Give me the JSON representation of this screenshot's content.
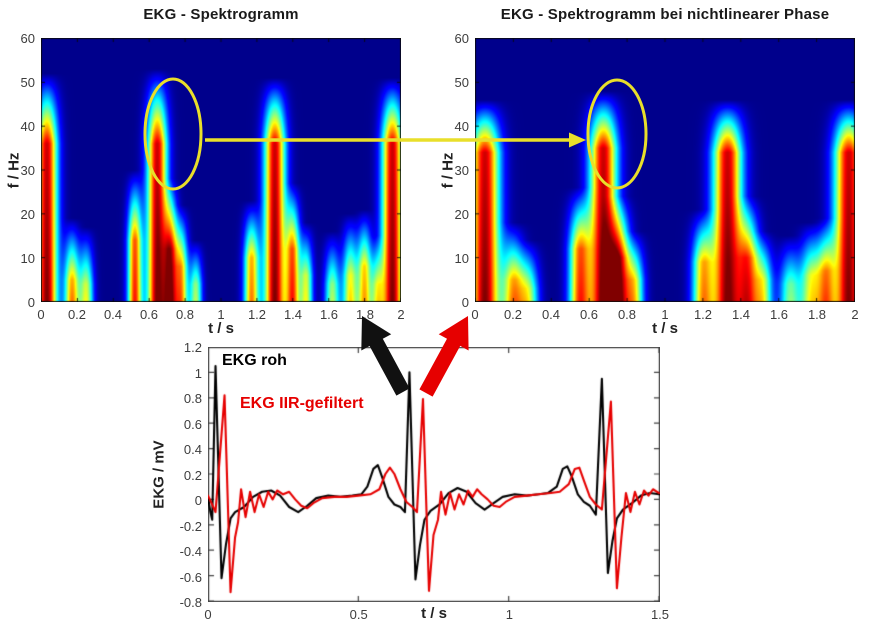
{
  "figure": {
    "background": "#ffffff",
    "annotation_colors": {
      "highlight_yellow": "#e9df2a",
      "raw_arrow_black": "#111111",
      "filtered_arrow_red": "#e60000"
    }
  },
  "chart_data": [
    {
      "id": "spectrogram_raw",
      "type": "heatmap",
      "title": "EKG - Spektrogramm",
      "xlabel": "t / s",
      "ylabel": "f / Hz",
      "xlim": [
        0,
        2
      ],
      "ylim": [
        0,
        60
      ],
      "xticks": [
        "0",
        "0.2",
        "0.4",
        "0.6",
        "0.8",
        "1",
        "1.2",
        "1.4",
        "1.6",
        "1.8",
        "2"
      ],
      "yticks": [
        "0",
        "10",
        "20",
        "30",
        "40",
        "50",
        "60"
      ],
      "colormap": "jet",
      "grid": false,
      "bursts_comment": "QRS energy bursts: [time_s, time_sigma_s, red_core_top_Hz, tip_top_Hz, amplitude]",
      "bursts": [
        [
          0.03,
          0.042,
          36,
          52,
          1.0
        ],
        [
          0.17,
          0.03,
          5,
          19,
          0.75
        ],
        [
          0.25,
          0.028,
          4,
          17,
          0.6
        ],
        [
          0.52,
          0.028,
          14,
          30,
          0.85
        ],
        [
          0.645,
          0.04,
          36,
          53,
          1.0
        ],
        [
          0.72,
          0.028,
          12,
          28,
          0.85
        ],
        [
          0.78,
          0.026,
          8,
          22,
          0.7
        ],
        [
          0.86,
          0.025,
          4,
          14,
          0.55
        ],
        [
          1.17,
          0.03,
          10,
          23,
          0.75
        ],
        [
          1.3,
          0.042,
          36,
          51,
          1.0
        ],
        [
          1.4,
          0.028,
          12,
          27,
          0.8
        ],
        [
          1.475,
          0.026,
          6,
          18,
          0.6
        ],
        [
          1.62,
          0.03,
          4,
          16,
          0.55
        ],
        [
          1.72,
          0.03,
          6,
          20,
          0.65
        ],
        [
          1.8,
          0.028,
          8,
          21,
          0.7
        ],
        [
          1.87,
          0.025,
          4,
          15,
          0.5
        ],
        [
          1.955,
          0.042,
          36,
          51,
          1.0
        ]
      ]
    },
    {
      "id": "spectrogram_nonlinear_phase",
      "type": "heatmap",
      "title": "EKG - Spektrogramm bei nichtlinearer Phase",
      "xlabel": "t / s",
      "ylabel": "f / Hz",
      "xlim": [
        0,
        2
      ],
      "ylim": [
        0,
        60
      ],
      "xticks": [
        "0",
        "0.2",
        "0.4",
        "0.6",
        "0.8",
        "1",
        "1.2",
        "1.4",
        "1.6",
        "1.8",
        "2"
      ],
      "yticks": [
        "0",
        "10",
        "20",
        "30",
        "40",
        "50",
        "60"
      ],
      "colormap": "jet",
      "grid": false,
      "bursts": [
        [
          0.05,
          0.055,
          34,
          46,
          1.0
        ],
        [
          0.2,
          0.04,
          5,
          18,
          0.7
        ],
        [
          0.28,
          0.038,
          3,
          14,
          0.55
        ],
        [
          0.55,
          0.04,
          12,
          26,
          0.8
        ],
        [
          0.675,
          0.052,
          35,
          48,
          1.0
        ],
        [
          0.76,
          0.04,
          10,
          24,
          0.8
        ],
        [
          0.84,
          0.035,
          5,
          16,
          0.6
        ],
        [
          1.2,
          0.04,
          9,
          21,
          0.7
        ],
        [
          1.33,
          0.055,
          34,
          46,
          1.0
        ],
        [
          1.44,
          0.04,
          10,
          24,
          0.75
        ],
        [
          1.52,
          0.035,
          5,
          16,
          0.55
        ],
        [
          1.66,
          0.04,
          4,
          15,
          0.5
        ],
        [
          1.77,
          0.04,
          6,
          18,
          0.6
        ],
        [
          1.85,
          0.035,
          7,
          19,
          0.65
        ],
        [
          1.97,
          0.055,
          34,
          46,
          1.0
        ]
      ]
    },
    {
      "id": "ekg_time_signals",
      "type": "line",
      "title": "",
      "xlabel": "t / s",
      "ylabel": "EKG / mV",
      "xlim": [
        0,
        1.5
      ],
      "ylim": [
        -0.8,
        1.2
      ],
      "xticks": [
        "0",
        "0.5",
        "1",
        "1.5"
      ],
      "yticks": [
        "-0.8",
        "-0.6",
        "-0.4",
        "-0.2",
        "0",
        "0.2",
        "0.4",
        "0.6",
        "0.8",
        "1",
        "1.2"
      ],
      "grid": false,
      "legend_position": "top-left-inside",
      "series": [
        {
          "name": "EKG roh",
          "color": "#000000",
          "points": [
            [
              0,
              0.02
            ],
            [
              0.008,
              -0.1
            ],
            [
              0.014,
              -0.16
            ],
            [
              0.025,
              1.05
            ],
            [
              0.045,
              -0.62
            ],
            [
              0.06,
              -0.35
            ],
            [
              0.075,
              -0.15
            ],
            [
              0.09,
              -0.1
            ],
            [
              0.12,
              -0.06
            ],
            [
              0.15,
              0.02
            ],
            [
              0.18,
              0.06
            ],
            [
              0.21,
              0.07
            ],
            [
              0.24,
              0.03
            ],
            [
              0.27,
              -0.06
            ],
            [
              0.3,
              -0.1
            ],
            [
              0.33,
              -0.05
            ],
            [
              0.36,
              0.01
            ],
            [
              0.4,
              0.03
            ],
            [
              0.44,
              0.02
            ],
            [
              0.48,
              0.03
            ],
            [
              0.51,
              0.04
            ],
            [
              0.53,
              0.1
            ],
            [
              0.55,
              0.24
            ],
            [
              0.565,
              0.27
            ],
            [
              0.58,
              0.17
            ],
            [
              0.6,
              0.02
            ],
            [
              0.62,
              -0.04
            ],
            [
              0.64,
              -0.06
            ],
            [
              0.655,
              -0.1
            ],
            [
              0.67,
              1.0
            ],
            [
              0.69,
              -0.63
            ],
            [
              0.705,
              -0.36
            ],
            [
              0.72,
              -0.16
            ],
            [
              0.74,
              -0.09
            ],
            [
              0.77,
              -0.04
            ],
            [
              0.8,
              0.05
            ],
            [
              0.83,
              0.09
            ],
            [
              0.86,
              0.06
            ],
            [
              0.89,
              -0.03
            ],
            [
              0.92,
              -0.08
            ],
            [
              0.95,
              -0.03
            ],
            [
              0.98,
              0.02
            ],
            [
              1.02,
              0.04
            ],
            [
              1.06,
              0.03
            ],
            [
              1.1,
              0.04
            ],
            [
              1.13,
              0.05
            ],
            [
              1.16,
              0.1
            ],
            [
              1.18,
              0.24
            ],
            [
              1.195,
              0.26
            ],
            [
              1.21,
              0.18
            ],
            [
              1.23,
              0.04
            ],
            [
              1.25,
              -0.02
            ],
            [
              1.27,
              -0.05
            ],
            [
              1.29,
              -0.12
            ],
            [
              1.31,
              0.95
            ],
            [
              1.33,
              -0.58
            ],
            [
              1.345,
              -0.33
            ],
            [
              1.36,
              -0.15
            ],
            [
              1.38,
              -0.08
            ],
            [
              1.41,
              -0.03
            ],
            [
              1.44,
              0.03
            ],
            [
              1.47,
              0.05
            ],
            [
              1.5,
              0.04
            ]
          ]
        },
        {
          "name": "EKG IIR-gefiltert",
          "color": "#e60000",
          "points": [
            [
              0,
              0.03
            ],
            [
              0.012,
              -0.03
            ],
            [
              0.025,
              -0.1
            ],
            [
              0.055,
              0.82
            ],
            [
              0.075,
              -0.73
            ],
            [
              0.09,
              -0.3
            ],
            [
              0.1,
              -0.18
            ],
            [
              0.11,
              0.08
            ],
            [
              0.125,
              -0.14
            ],
            [
              0.14,
              0.06
            ],
            [
              0.155,
              -0.1
            ],
            [
              0.17,
              0.04
            ],
            [
              0.185,
              -0.06
            ],
            [
              0.2,
              0.06
            ],
            [
              0.215,
              0.0
            ],
            [
              0.23,
              0.07
            ],
            [
              0.25,
              0.04
            ],
            [
              0.27,
              0.06
            ],
            [
              0.29,
              0.0
            ],
            [
              0.31,
              -0.05
            ],
            [
              0.33,
              -0.07
            ],
            [
              0.35,
              -0.03
            ],
            [
              0.38,
              0.01
            ],
            [
              0.42,
              0.02
            ],
            [
              0.46,
              0.02
            ],
            [
              0.5,
              0.03
            ],
            [
              0.54,
              0.04
            ],
            [
              0.57,
              0.08
            ],
            [
              0.59,
              0.2
            ],
            [
              0.605,
              0.25
            ],
            [
              0.62,
              0.2
            ],
            [
              0.64,
              0.08
            ],
            [
              0.66,
              -0.02
            ],
            [
              0.68,
              -0.06
            ],
            [
              0.695,
              -0.1
            ],
            [
              0.715,
              0.79
            ],
            [
              0.735,
              -0.72
            ],
            [
              0.75,
              -0.28
            ],
            [
              0.765,
              -0.16
            ],
            [
              0.775,
              0.06
            ],
            [
              0.79,
              -0.12
            ],
            [
              0.805,
              0.05
            ],
            [
              0.82,
              -0.08
            ],
            [
              0.835,
              0.04
            ],
            [
              0.85,
              -0.04
            ],
            [
              0.865,
              0.07
            ],
            [
              0.88,
              0.02
            ],
            [
              0.895,
              0.08
            ],
            [
              0.91,
              0.04
            ],
            [
              0.93,
              0.0
            ],
            [
              0.95,
              -0.05
            ],
            [
              0.97,
              -0.06
            ],
            [
              0.99,
              -0.02
            ],
            [
              1.02,
              0.02
            ],
            [
              1.06,
              0.03
            ],
            [
              1.1,
              0.04
            ],
            [
              1.14,
              0.05
            ],
            [
              1.17,
              0.06
            ],
            [
              1.2,
              0.12
            ],
            [
              1.22,
              0.24
            ],
            [
              1.235,
              0.25
            ],
            [
              1.25,
              0.15
            ],
            [
              1.27,
              0.02
            ],
            [
              1.29,
              -0.04
            ],
            [
              1.31,
              -0.08
            ],
            [
              1.34,
              0.77
            ],
            [
              1.36,
              -0.7
            ],
            [
              1.375,
              -0.3
            ],
            [
              1.39,
              0.05
            ],
            [
              1.405,
              -0.1
            ],
            [
              1.42,
              0.06
            ],
            [
              1.435,
              -0.04
            ],
            [
              1.45,
              0.07
            ],
            [
              1.465,
              0.03
            ],
            [
              1.48,
              0.08
            ],
            [
              1.5,
              0.05
            ]
          ]
        }
      ]
    }
  ]
}
